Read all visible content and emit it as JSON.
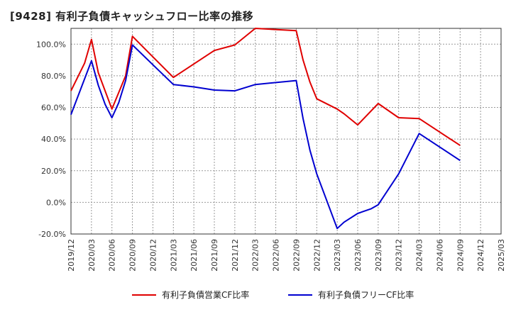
{
  "title": "[9428]  有利子負債キャッシュフロー比率の推移",
  "chart_data": {
    "type": "line",
    "title": "[9428]  有利子負債キャッシュフロー比率の推移",
    "xlabel": "",
    "ylabel": "",
    "ylim": [
      -20,
      110
    ],
    "y_ticks": [
      -20,
      0,
      20,
      40,
      60,
      80,
      100
    ],
    "y_tick_labels": [
      "-20.0%",
      "0.0%",
      "20.0%",
      "40.0%",
      "60.0%",
      "80.0%",
      "100.0%"
    ],
    "x_ticks": [
      "2019/12",
      "2020/03",
      "2020/06",
      "2020/09",
      "2020/12",
      "2021/03",
      "2021/06",
      "2021/09",
      "2021/12",
      "2022/03",
      "2022/06",
      "2022/09",
      "2022/12",
      "2023/03",
      "2023/06",
      "2023/09",
      "2023/12",
      "2024/03",
      "2024/06",
      "2024/09",
      "2024/12",
      "2025/03"
    ],
    "grid": true,
    "legend_position": "bottom",
    "series": [
      {
        "name": "有利子負債営業CF比率",
        "color": "#e00000",
        "points": [
          [
            "2019/12",
            70.5
          ],
          [
            "2020/02",
            88
          ],
          [
            "2020/03",
            103
          ],
          [
            "2020/04",
            82
          ],
          [
            "2020/06",
            59
          ],
          [
            "2020/08",
            80
          ],
          [
            "2020/09",
            105
          ],
          [
            "2020/12",
            92
          ],
          [
            "2021/03",
            79
          ],
          [
            "2021/09",
            96
          ],
          [
            "2021/12",
            99.5
          ],
          [
            "2022/03",
            110
          ],
          [
            "2022/09",
            108.5
          ],
          [
            "2022/10",
            90
          ],
          [
            "2022/11",
            76
          ],
          [
            "2022/12",
            65.5
          ],
          [
            "2023/03",
            59
          ],
          [
            "2023/04",
            56
          ],
          [
            "2023/06",
            49
          ],
          [
            "2023/09",
            62.5
          ],
          [
            "2023/12",
            53.5
          ],
          [
            "2024/03",
            53
          ],
          [
            "2024/09",
            36
          ]
        ]
      },
      {
        "name": "有利子負債フリーCF比率",
        "color": "#0000d0",
        "points": [
          [
            "2019/12",
            55.5
          ],
          [
            "2020/03",
            89.5
          ],
          [
            "2020/04",
            74
          ],
          [
            "2020/05",
            62
          ],
          [
            "2020/06",
            53.5
          ],
          [
            "2020/07",
            63
          ],
          [
            "2020/08",
            77
          ],
          [
            "2020/09",
            99.5
          ],
          [
            "2020/12",
            87
          ],
          [
            "2021/03",
            74.5
          ],
          [
            "2021/06",
            73
          ],
          [
            "2021/09",
            71
          ],
          [
            "2021/12",
            70.5
          ],
          [
            "2022/03",
            74.5
          ],
          [
            "2022/09",
            77
          ],
          [
            "2022/10",
            53
          ],
          [
            "2022/11",
            33
          ],
          [
            "2022/12",
            18
          ],
          [
            "2023/03",
            -16.5
          ],
          [
            "2023/04",
            -12.5
          ],
          [
            "2023/06",
            -7
          ],
          [
            "2023/08",
            -4
          ],
          [
            "2023/09",
            -1.5
          ],
          [
            "2023/12",
            18
          ],
          [
            "2024/03",
            43.5
          ],
          [
            "2024/09",
            26.5
          ]
        ]
      }
    ]
  }
}
